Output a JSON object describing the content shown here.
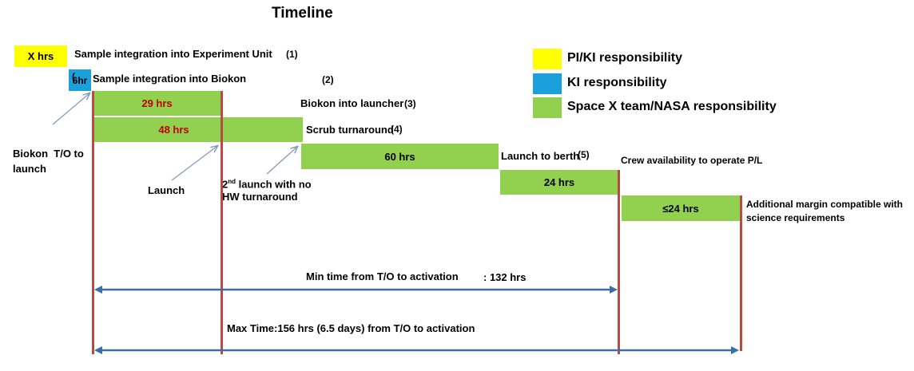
{
  "title": "Timeline",
  "legend": [
    {
      "label": "PI/KI responsibility",
      "color": "#ffff00"
    },
    {
      "label": "KI responsibility",
      "color": "#1ca0dc"
    },
    {
      "label": "Space X team/NASA responsibility",
      "color": "#92d050"
    }
  ],
  "steps": {
    "s1": {
      "box": "X hrs",
      "label": "Sample integration  into Experiment   Unit",
      "num": "(1)"
    },
    "s2": {
      "box": "6hr",
      "box_overlay": "(",
      "label": "Sample integration  into Biokon",
      "num": "(2)"
    },
    "s3": {
      "label": "Biokon into launcher",
      "num": "(3)"
    },
    "s4": {
      "label": "Scrub turnaround",
      "num": "(4)"
    },
    "s5": {
      "label": "Launch to berth",
      "num": "(5)"
    }
  },
  "bars": {
    "b29": "29 hrs",
    "b48": "48 hrs",
    "b60": "60 hrs",
    "b24": "24 hrs",
    "b24m": "≤24 hrs"
  },
  "annotations": {
    "biokon_to": "Biokon  T/O to\nlaunch",
    "launch": "Launch",
    "second_launch_sup": "nd",
    "second_launch_pre": "2",
    "second_launch_rest": " launch with no",
    "second_launch_line2": "HW turnaround",
    "crew": "Crew availability to operate P/L",
    "margin": "Additional margin compatible with\nscience requirements"
  },
  "spans": {
    "min": {
      "label": "Min time from T/O to  activation",
      "value": ": 132 hrs"
    },
    "max": {
      "label": "Max Time:156  hrs (6.5 days)  from    T/O to activation"
    }
  },
  "colors": {
    "yellow": "#ffff00",
    "blue": "#1ca0dc",
    "green": "#92d050",
    "red_text": "#c00000",
    "vline": "#b84a44",
    "arrow": "#3a6ea8",
    "pointer": "#7e98b8"
  }
}
